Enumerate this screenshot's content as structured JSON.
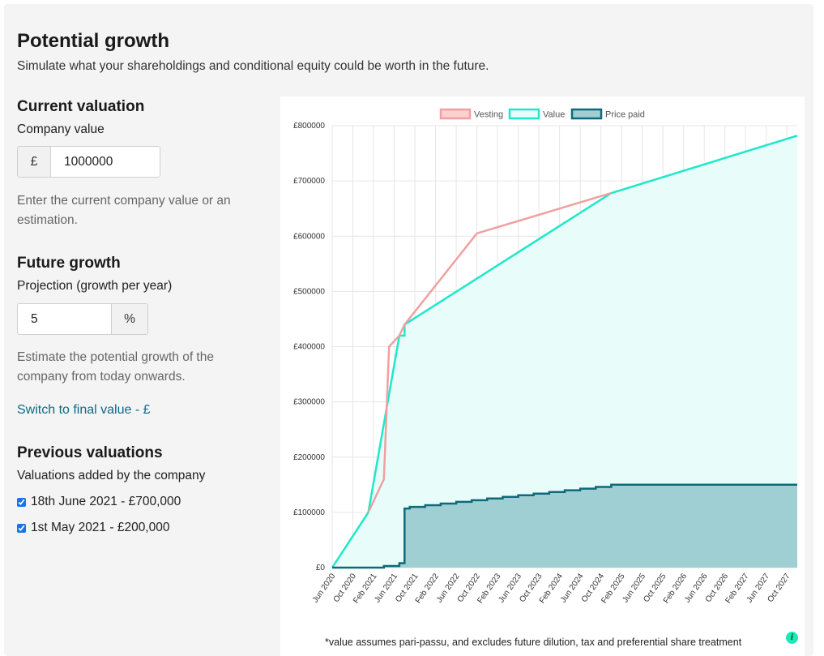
{
  "header": {
    "title": "Potential growth",
    "subtitle": "Simulate what your shareholdings and conditional equity could be worth in the future."
  },
  "current_valuation": {
    "heading": "Current valuation",
    "label": "Company value",
    "currency_symbol": "£",
    "value": "1000000",
    "help": "Enter the current company value or an estimation."
  },
  "future_growth": {
    "heading": "Future growth",
    "label": "Projection (growth per year)",
    "value": "5",
    "unit": "%",
    "help": "Estimate the potential growth of the company from today onwards.",
    "switch_link": "Switch to final value - £"
  },
  "previous_valuations": {
    "heading": "Previous valuations",
    "label": "Valuations added by the company",
    "items": [
      {
        "label": "18th June 2021 - £700,000",
        "checked": true
      },
      {
        "label": "1st May 2021 - £200,000",
        "checked": true
      }
    ]
  },
  "chart": {
    "footnote": "*value assumes pari-passu, and excludes future dilution, tax and preferential share treatment",
    "info_icon": "info-icon"
  },
  "chart_data": {
    "type": "area",
    "title": "",
    "legend": [
      "Vesting",
      "Value",
      "Price paid"
    ],
    "legend_position": "top",
    "grid": true,
    "colors": {
      "vesting": "#f0a0a0",
      "value": "#1de9c8",
      "price_paid": "#0e6a7a",
      "value_fill": "#e8fdfa",
      "price_fill": "#9fcfd2"
    },
    "categories": [
      "Jun 2020",
      "Oct 2020",
      "Feb 2021",
      "Jun 2021",
      "Oct 2021",
      "Feb 2022",
      "Jun 2022",
      "Oct 2022",
      "Feb 2023",
      "Jun 2023",
      "Oct 2023",
      "Feb 2024",
      "Jun 2024",
      "Oct 2024",
      "Feb 2025",
      "Jun 2025",
      "Oct 2025",
      "Feb 2026",
      "Jun 2026",
      "Oct 2026",
      "Feb 2027",
      "Jun 2027",
      "Oct 2027"
    ],
    "y_ticks": [
      "£0",
      "£100000",
      "£200000",
      "£300000",
      "£400000",
      "£500000",
      "£600000",
      "£700000",
      "£800000"
    ],
    "ylim": [
      0,
      800000
    ],
    "xlim": [
      "2020-06",
      "2027-12"
    ],
    "series": [
      {
        "name": "Vesting",
        "points": [
          [
            "2021-01",
            100000
          ],
          [
            "2021-04",
            160000
          ],
          [
            "2021-05",
            400000
          ],
          [
            "2021-07",
            420000
          ],
          [
            "2021-08",
            440000
          ],
          [
            "2022-10",
            605000
          ],
          [
            "2024-12",
            678000
          ]
        ]
      },
      {
        "name": "Value",
        "points": [
          [
            "2020-06",
            0
          ],
          [
            "2021-01",
            100000
          ],
          [
            "2021-07",
            420000
          ],
          [
            "2021-08",
            420000
          ],
          [
            "2021-08",
            440000
          ],
          [
            "2024-12",
            678000
          ],
          [
            "2027-12",
            782000
          ]
        ]
      },
      {
        "name": "Price paid",
        "points": [
          [
            "2020-06",
            0
          ],
          [
            "2021-04",
            0
          ],
          [
            "2021-04",
            3000
          ],
          [
            "2021-07",
            3000
          ],
          [
            "2021-07",
            8000
          ],
          [
            "2021-08",
            8000
          ],
          [
            "2021-08",
            107000
          ],
          [
            "2021-09",
            107000
          ],
          [
            "2021-09",
            110000
          ],
          [
            "2021-12",
            110000
          ],
          [
            "2021-12",
            113000
          ],
          [
            "2022-03",
            113000
          ],
          [
            "2022-03",
            116000
          ],
          [
            "2022-06",
            116000
          ],
          [
            "2022-06",
            119000
          ],
          [
            "2022-09",
            119000
          ],
          [
            "2022-09",
            122000
          ],
          [
            "2022-12",
            122000
          ],
          [
            "2022-12",
            125000
          ],
          [
            "2023-03",
            125000
          ],
          [
            "2023-03",
            128000
          ],
          [
            "2023-06",
            128000
          ],
          [
            "2023-06",
            131000
          ],
          [
            "2023-09",
            131000
          ],
          [
            "2023-09",
            134000
          ],
          [
            "2023-12",
            134000
          ],
          [
            "2023-12",
            137000
          ],
          [
            "2024-03",
            137000
          ],
          [
            "2024-03",
            140000
          ],
          [
            "2024-06",
            140000
          ],
          [
            "2024-06",
            143000
          ],
          [
            "2024-09",
            143000
          ],
          [
            "2024-09",
            146000
          ],
          [
            "2024-12",
            146000
          ],
          [
            "2024-12",
            150000
          ],
          [
            "2027-12",
            150000
          ]
        ]
      }
    ]
  }
}
